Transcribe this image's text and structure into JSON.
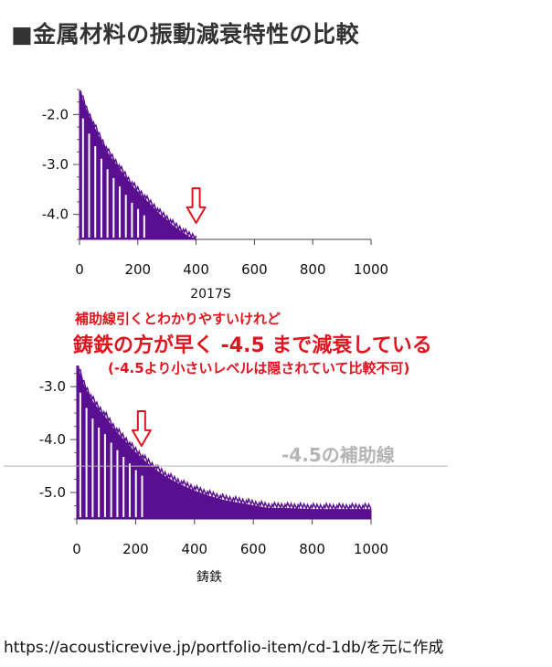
{
  "title": "■金属材料の振動減衰特性の比較",
  "annotation": {
    "line1": "補助線引くとわかりやすいけれど",
    "line2": "鋳鉄の方が早く -4.5 まで減衰している",
    "line3": "(-4.5より小さいレベルは隠されていて比較不可)",
    "aux_label": "-4.5の補助線"
  },
  "source": "https://acousticrevive.jp/portfolio-item/cd-1db/を元に作成",
  "colors": {
    "series": "#5a0f91",
    "annotation": "#e0141e",
    "aux_line": "#b4b4b4"
  },
  "chart_data": [
    {
      "type": "area",
      "xlabel": "2017S",
      "ylabel": "",
      "xlim": [
        0,
        1000
      ],
      "ylim": [
        -4.5,
        -1.5
      ],
      "xticks": [
        0,
        200,
        400,
        600,
        800,
        1000
      ],
      "xtick_labels": [
        "0",
        "200",
        "400",
        "600",
        "800",
        "1000"
      ],
      "yticks": [
        -2.0,
        -3.0,
        -4.0
      ],
      "ytick_labels": [
        "-2.0",
        "-3.0",
        "-4.0"
      ],
      "series": [
        {
          "x": [
            0,
            25,
            50,
            75,
            100,
            125,
            150,
            175,
            200,
            225,
            250,
            275,
            300,
            325,
            350,
            375,
            400
          ],
          "y": [
            -1.55,
            -1.95,
            -2.25,
            -2.55,
            -2.8,
            -3.0,
            -3.2,
            -3.4,
            -3.55,
            -3.7,
            -3.85,
            -4.0,
            -4.12,
            -4.25,
            -4.35,
            -4.45,
            -4.5
          ]
        }
      ],
      "marker": {
        "x": 400,
        "label": "⇩"
      }
    },
    {
      "type": "area",
      "xlabel": "鋳鉄",
      "ylabel": "",
      "xlim": [
        0,
        1000
      ],
      "ylim": [
        -5.5,
        -2.6
      ],
      "xticks": [
        0,
        200,
        400,
        600,
        800,
        1000
      ],
      "xtick_labels": [
        "0",
        "200",
        "400",
        "600",
        "800",
        "1000"
      ],
      "yticks": [
        -3.0,
        -4.0,
        -5.0
      ],
      "ytick_labels": [
        "-3.0",
        "-4.0",
        "-5.0"
      ],
      "series": [
        {
          "x": [
            0,
            25,
            50,
            75,
            100,
            125,
            150,
            175,
            200,
            250,
            300,
            350,
            400,
            450,
            500,
            550,
            600,
            650,
            700,
            800,
            900,
            1000
          ],
          "y": [
            -2.6,
            -3.0,
            -3.25,
            -3.45,
            -3.6,
            -3.8,
            -3.95,
            -4.1,
            -4.25,
            -4.5,
            -4.7,
            -4.85,
            -4.97,
            -5.07,
            -5.15,
            -5.2,
            -5.25,
            -5.3,
            -5.3,
            -5.32,
            -5.32,
            -5.32
          ]
        }
      ],
      "marker": {
        "x": 220,
        "label": "⇩"
      },
      "reference_line": -4.5
    }
  ]
}
